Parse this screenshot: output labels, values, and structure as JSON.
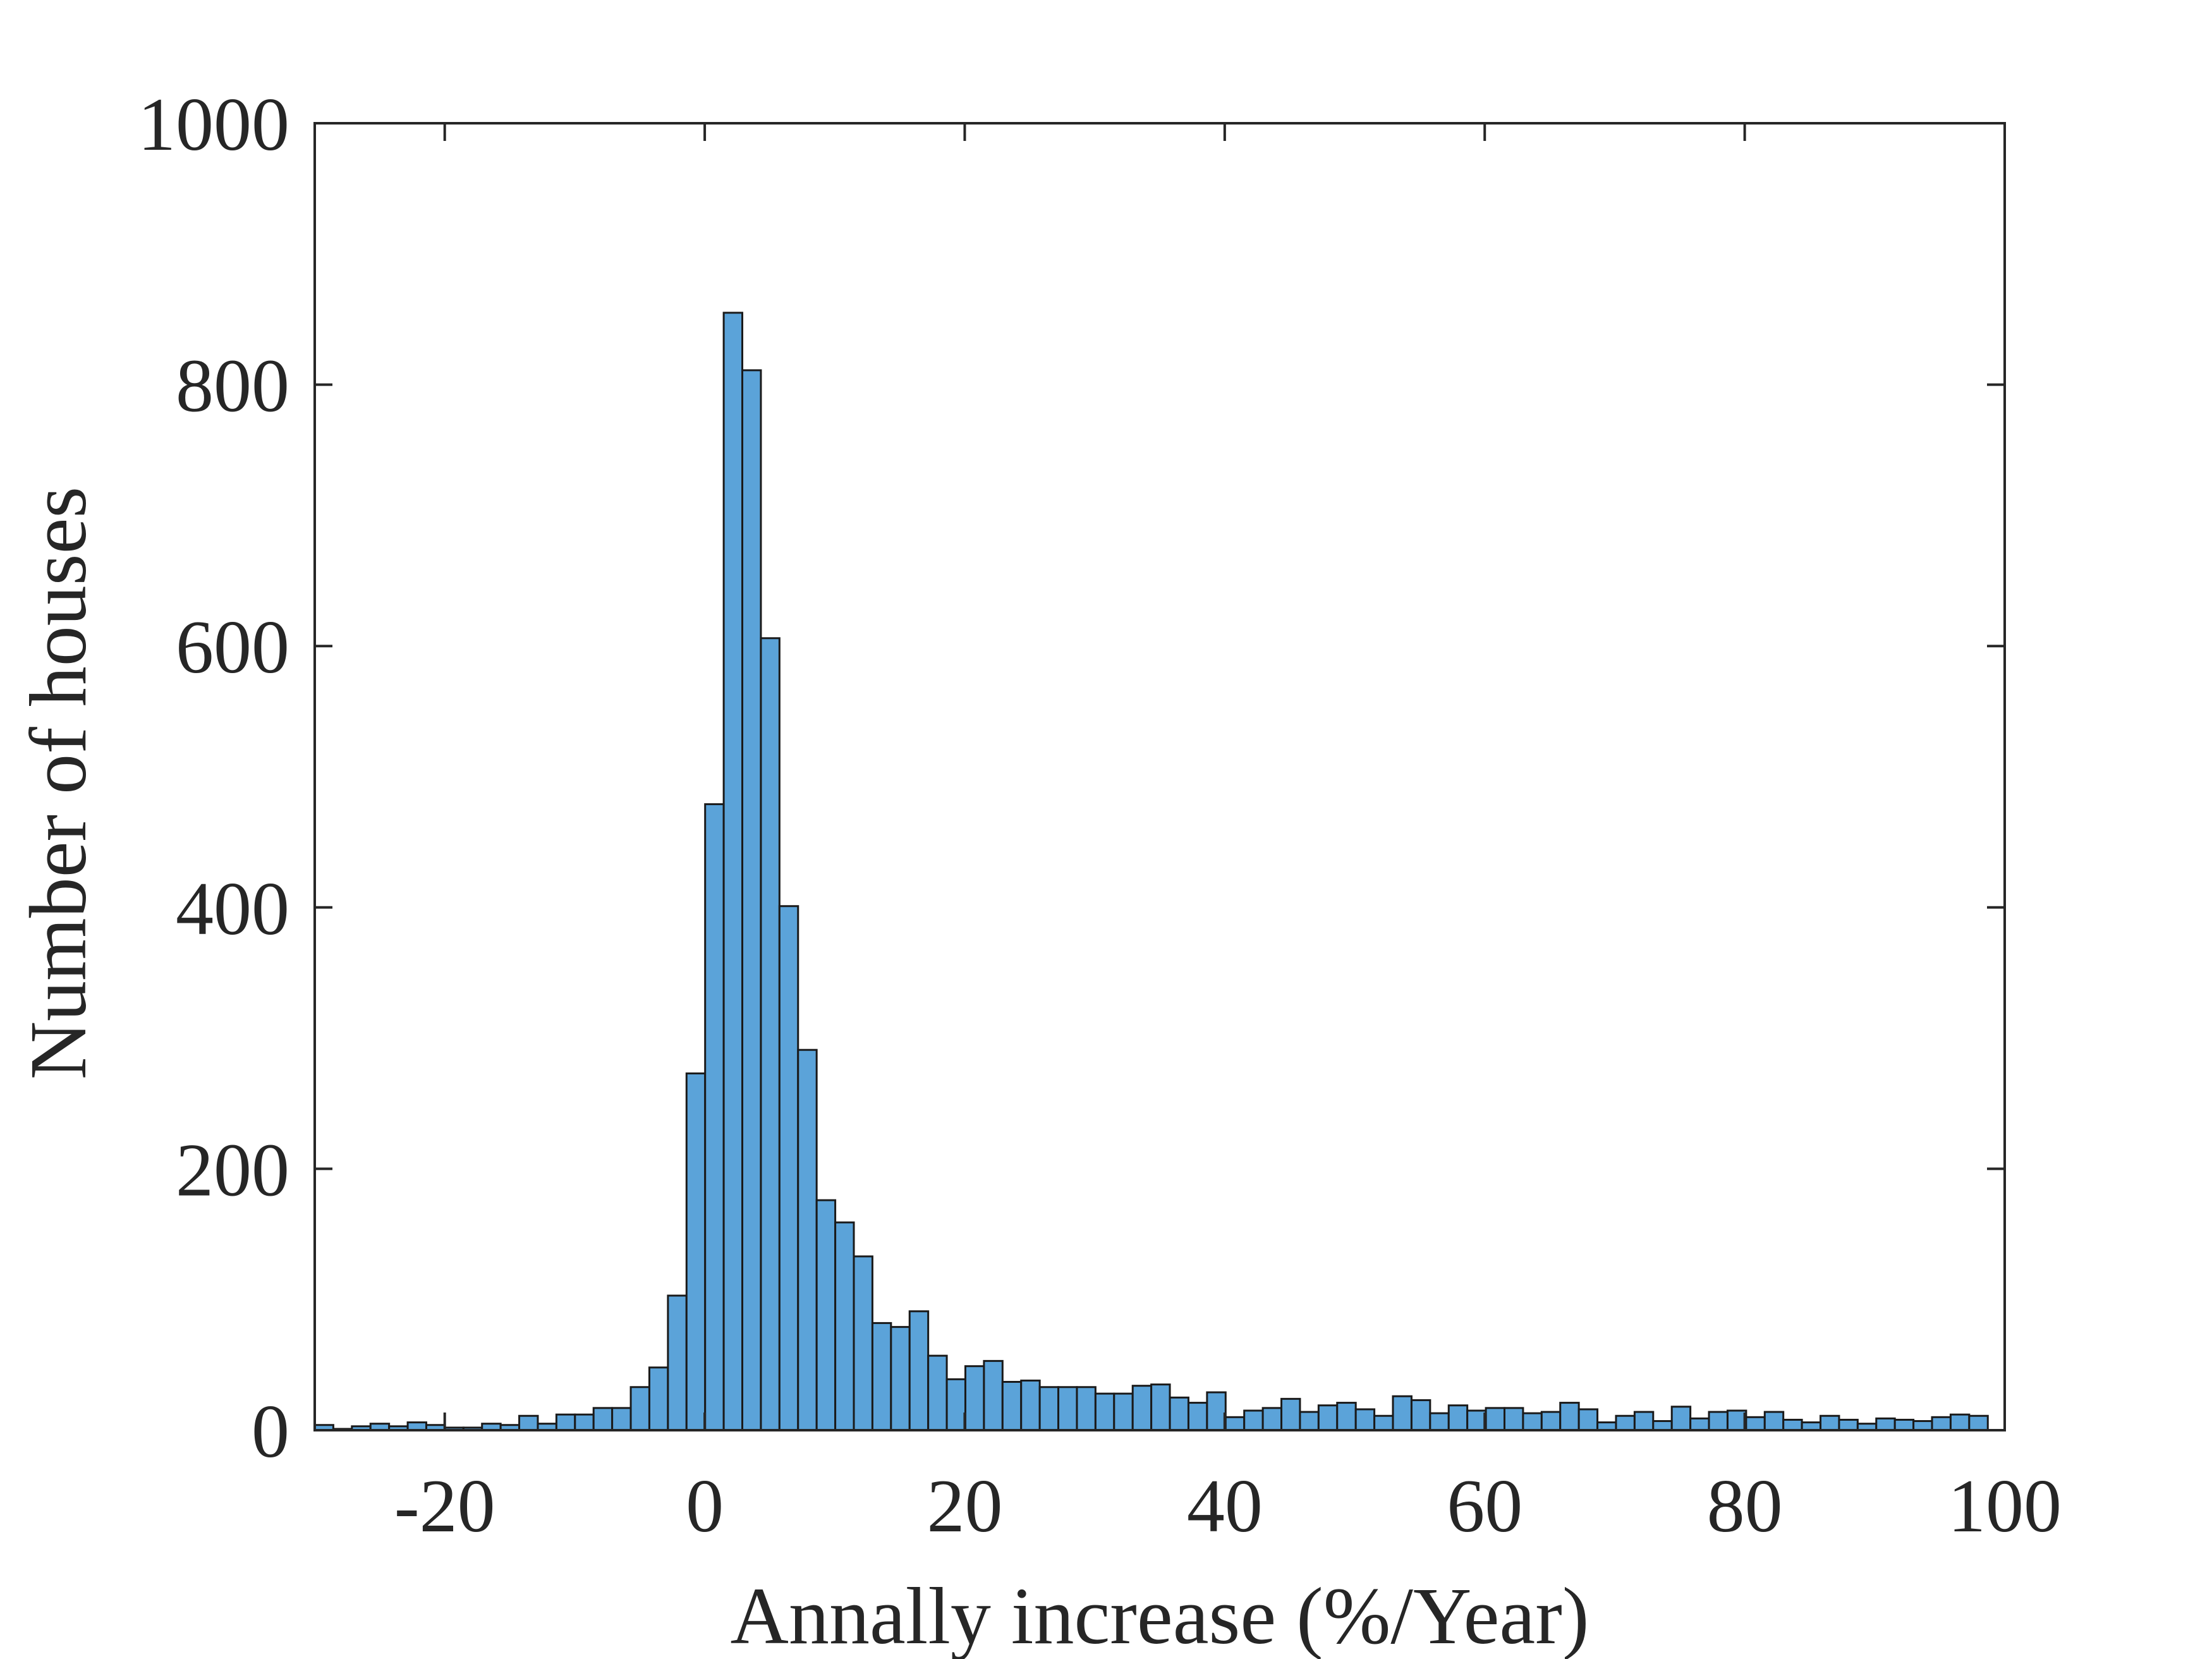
{
  "chart_data": {
    "type": "bar",
    "subtype": "histogram",
    "title": "",
    "xlabel": "Annally increase (%/Year)",
    "ylabel": "Number of houses",
    "xlim": [
      -30,
      100
    ],
    "ylim": [
      0,
      1000
    ],
    "xticks": [
      -20,
      0,
      20,
      40,
      60,
      80,
      100
    ],
    "yticks": [
      0,
      200,
      400,
      600,
      800,
      1000
    ],
    "grid": false,
    "legend": "none",
    "bar_color": "#5ba3d9",
    "edge_color": "#1a1a1a",
    "bin_width": 1.43,
    "bin_start": -30,
    "values": [
      4,
      1,
      3,
      5,
      3,
      6,
      4,
      2,
      2,
      5,
      4,
      11,
      5,
      12,
      12,
      17,
      17,
      33,
      48,
      103,
      273,
      479,
      855,
      811,
      606,
      401,
      291,
      176,
      159,
      133,
      82,
      79,
      91,
      57,
      39,
      49,
      53,
      37,
      38,
      33,
      33,
      33,
      28,
      28,
      34,
      35,
      25,
      21,
      29,
      10,
      15,
      17,
      24,
      14,
      19,
      21,
      16,
      11,
      26,
      23,
      13,
      19,
      15,
      17,
      17,
      13,
      14,
      21,
      16,
      6,
      11,
      14,
      7,
      18,
      9,
      14,
      15,
      10,
      14,
      8,
      6,
      11,
      8,
      5,
      9,
      8,
      7,
      10,
      12,
      11
    ]
  }
}
